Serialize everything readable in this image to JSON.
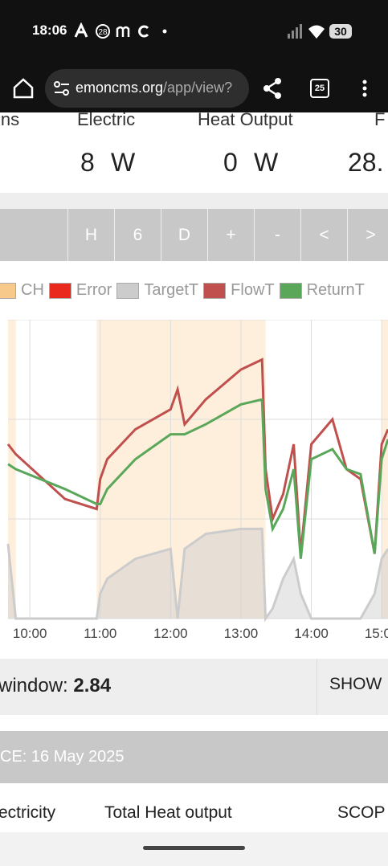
{
  "status_bar": {
    "time": "18:06",
    "badge": "28",
    "battery": "30"
  },
  "browser": {
    "host": "emoncms.org",
    "path": "/app/view?",
    "tabs": "25"
  },
  "stats": [
    {
      "label": "ins"
    },
    {
      "label": "Electric",
      "value": 8,
      "unit": "W"
    },
    {
      "label": "Heat Output",
      "value": 0,
      "unit": "W"
    },
    {
      "label": "F",
      "value": "28."
    }
  ],
  "buttons": [
    "H",
    "6",
    "D",
    "+",
    "-",
    "<",
    ">"
  ],
  "chart_data": {
    "type": "line",
    "x": [
      9.69,
      9.8,
      10.5,
      10.95,
      11.0,
      11.1,
      11.5,
      12.0,
      12.1,
      12.2,
      12.5,
      13.0,
      13.3,
      13.35,
      13.45,
      13.6,
      13.75,
      13.85,
      14.0,
      14.3,
      14.5,
      14.7,
      14.9,
      15.0,
      15.09
    ],
    "xlim": [
      9.69,
      15.09
    ],
    "xticks": [
      {
        "value": 10,
        "label": "10:00"
      },
      {
        "value": 11,
        "label": "11:00"
      },
      {
        "value": 12,
        "label": "12:00"
      },
      {
        "value": 13,
        "label": "13:00"
      },
      {
        "value": 14,
        "label": "14:00"
      },
      {
        "value": 15,
        "label": "15:00"
      }
    ],
    "ylim": [
      0,
      60
    ],
    "yticks": [
      0,
      20,
      40,
      60
    ],
    "grid": true,
    "series": [
      {
        "name": "CH",
        "color": "#f7c98b",
        "type": "band",
        "values": [
          1,
          0,
          0,
          1,
          1,
          1,
          1,
          1,
          1,
          1,
          1,
          1,
          1,
          0,
          0,
          0,
          0,
          0,
          0,
          0,
          0,
          0,
          0,
          1,
          1
        ]
      },
      {
        "name": "Error",
        "color": "#e8291c",
        "values": [
          null,
          null,
          null,
          null,
          null,
          null,
          null,
          null,
          null,
          null,
          null,
          null,
          null,
          null,
          null,
          null,
          null,
          null,
          null,
          null,
          null,
          null,
          null,
          null,
          null
        ]
      },
      {
        "name": "TargetT",
        "color": "#cccccc",
        "type": "area",
        "values": [
          15,
          0,
          0,
          0,
          5,
          8,
          12,
          14,
          0,
          14,
          17,
          18,
          18,
          0,
          2,
          8,
          12,
          5,
          0,
          0,
          0,
          0,
          5,
          12,
          14
        ]
      },
      {
        "name": "FlowT",
        "color": "#c0504d",
        "values": [
          35,
          33,
          24,
          22,
          28,
          32,
          38,
          42,
          46,
          39,
          44,
          50,
          52,
          30,
          20,
          25,
          35,
          13,
          35,
          40,
          30,
          28,
          13,
          35,
          38
        ]
      },
      {
        "name": "ReturnT",
        "color": "#5aa75a",
        "values": [
          31,
          30,
          26,
          23,
          23,
          26,
          32,
          37,
          37,
          37,
          39,
          43,
          44,
          26,
          18,
          22,
          30,
          12,
          32,
          34,
          30,
          29,
          13,
          32,
          36
        ]
      }
    ]
  },
  "window": {
    "label": "window: ",
    "value": "2.84",
    "button": "SHOW"
  },
  "since": "CE: 16 May 2025",
  "totals": [
    "ectricity",
    "Total Heat output",
    "SCOP"
  ]
}
